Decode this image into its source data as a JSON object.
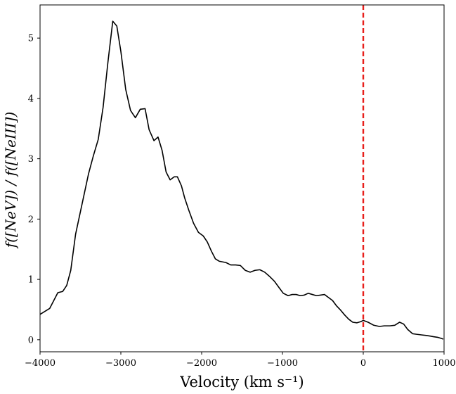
{
  "chart_data": {
    "type": "line",
    "xlabel": "Velocity (km s⁻¹)",
    "ylabel": "f([NeV]) / f([NeIII])",
    "xlim": [
      -4000,
      1000
    ],
    "ylim": [
      -0.2,
      5.55
    ],
    "xticks": [
      -4000,
      -3000,
      -2000,
      -1000,
      0,
      1000
    ],
    "xtick_labels": [
      "−4000",
      "−3000",
      "−2000",
      "−1000",
      "0",
      "1000"
    ],
    "yticks": [
      0,
      1,
      2,
      3,
      4,
      5
    ],
    "ytick_labels": [
      "0",
      "1",
      "2",
      "3",
      "4",
      "5"
    ],
    "grid": false,
    "reference_line": {
      "x": 0,
      "color": "#e8201c",
      "style": "dashed"
    },
    "series": [
      {
        "color": "#000000",
        "x": [
          -4000,
          -3880,
          -3780,
          -3720,
          -3670,
          -3620,
          -3560,
          -3480,
          -3400,
          -3340,
          -3280,
          -3220,
          -3160,
          -3100,
          -3050,
          -3000,
          -2940,
          -2880,
          -2820,
          -2760,
          -2700,
          -2650,
          -2590,
          -2540,
          -2490,
          -2440,
          -2390,
          -2340,
          -2300,
          -2250,
          -2210,
          -2160,
          -2100,
          -2040,
          -1980,
          -1930,
          -1880,
          -1830,
          -1780,
          -1700,
          -1640,
          -1580,
          -1520,
          -1460,
          -1400,
          -1340,
          -1280,
          -1220,
          -1160,
          -1100,
          -1040,
          -990,
          -930,
          -880,
          -830,
          -780,
          -730,
          -680,
          -630,
          -580,
          -530,
          -480,
          -430,
          -380,
          -330,
          -280,
          -230,
          -180,
          -130,
          -80,
          -30,
          0,
          60,
          130,
          200,
          260,
          330,
          390,
          450,
          500,
          550,
          610,
          660,
          720,
          780,
          830,
          870,
          920,
          970,
          990
        ],
        "y": [
          0.42,
          0.52,
          0.78,
          0.8,
          0.9,
          1.15,
          1.75,
          2.25,
          2.75,
          3.05,
          3.32,
          3.85,
          4.6,
          5.28,
          5.2,
          4.78,
          4.15,
          3.8,
          3.68,
          3.82,
          3.83,
          3.48,
          3.3,
          3.36,
          3.14,
          2.78,
          2.65,
          2.7,
          2.7,
          2.55,
          2.35,
          2.15,
          1.93,
          1.78,
          1.72,
          1.62,
          1.47,
          1.34,
          1.3,
          1.28,
          1.24,
          1.24,
          1.23,
          1.15,
          1.12,
          1.15,
          1.16,
          1.12,
          1.05,
          0.97,
          0.86,
          0.77,
          0.73,
          0.75,
          0.75,
          0.73,
          0.74,
          0.77,
          0.75,
          0.73,
          0.74,
          0.75,
          0.7,
          0.65,
          0.56,
          0.49,
          0.41,
          0.34,
          0.29,
          0.28,
          0.3,
          0.32,
          0.29,
          0.24,
          0.22,
          0.23,
          0.23,
          0.24,
          0.29,
          0.26,
          0.17,
          0.1,
          0.09,
          0.08,
          0.07,
          0.06,
          0.05,
          0.04,
          0.02,
          0.01
        ]
      }
    ]
  }
}
